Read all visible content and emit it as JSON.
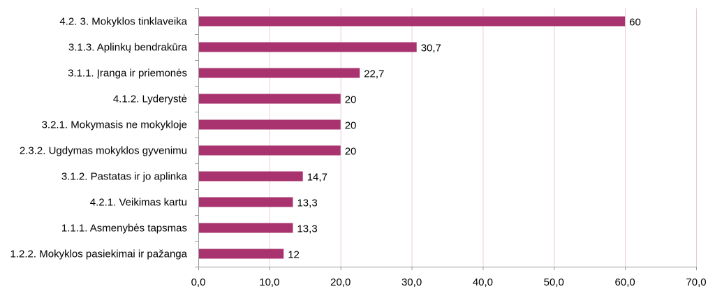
{
  "chart_data": {
    "type": "bar",
    "orientation": "horizontal",
    "title": "",
    "xlabel": "",
    "ylabel": "",
    "categories": [
      "4.2. 3. Mokyklos tinklaveika",
      "3.1.3. Aplinkų bendrakūra",
      "3.1.1. Įranga ir priemonės",
      "4.1.2. Lyderystė",
      "3.2.1. Mokymasis ne mokykloje",
      "2.3.2. Ugdymas mokyklos gyvenimu",
      "3.1.2. Pastatas ir jo aplinka",
      "4.2.1. Veikimas kartu",
      "1.1.1. Asmenybės tapsmas",
      "1.2.2. Mokyklos pasiekimai ir pažanga"
    ],
    "values": [
      60,
      30.7,
      22.7,
      20,
      20,
      20,
      14.7,
      13.3,
      13.3,
      12
    ],
    "value_labels": [
      "60",
      "30,7",
      "22,7",
      "20",
      "20",
      "20",
      "14,7",
      "13,3",
      "13,3",
      "12"
    ],
    "xlim": [
      0,
      70
    ],
    "xticks": [
      0,
      10,
      20,
      30,
      40,
      50,
      60,
      70
    ],
    "xtick_labels": [
      "0,0",
      "10,0",
      "20,0",
      "30,0",
      "40,0",
      "50,0",
      "60,0",
      "70,0"
    ],
    "grid": "vertical",
    "legend": "none",
    "colors": {
      "bar": "#A8336E",
      "grid": "#E6CCD9",
      "axis": "#999999"
    }
  }
}
